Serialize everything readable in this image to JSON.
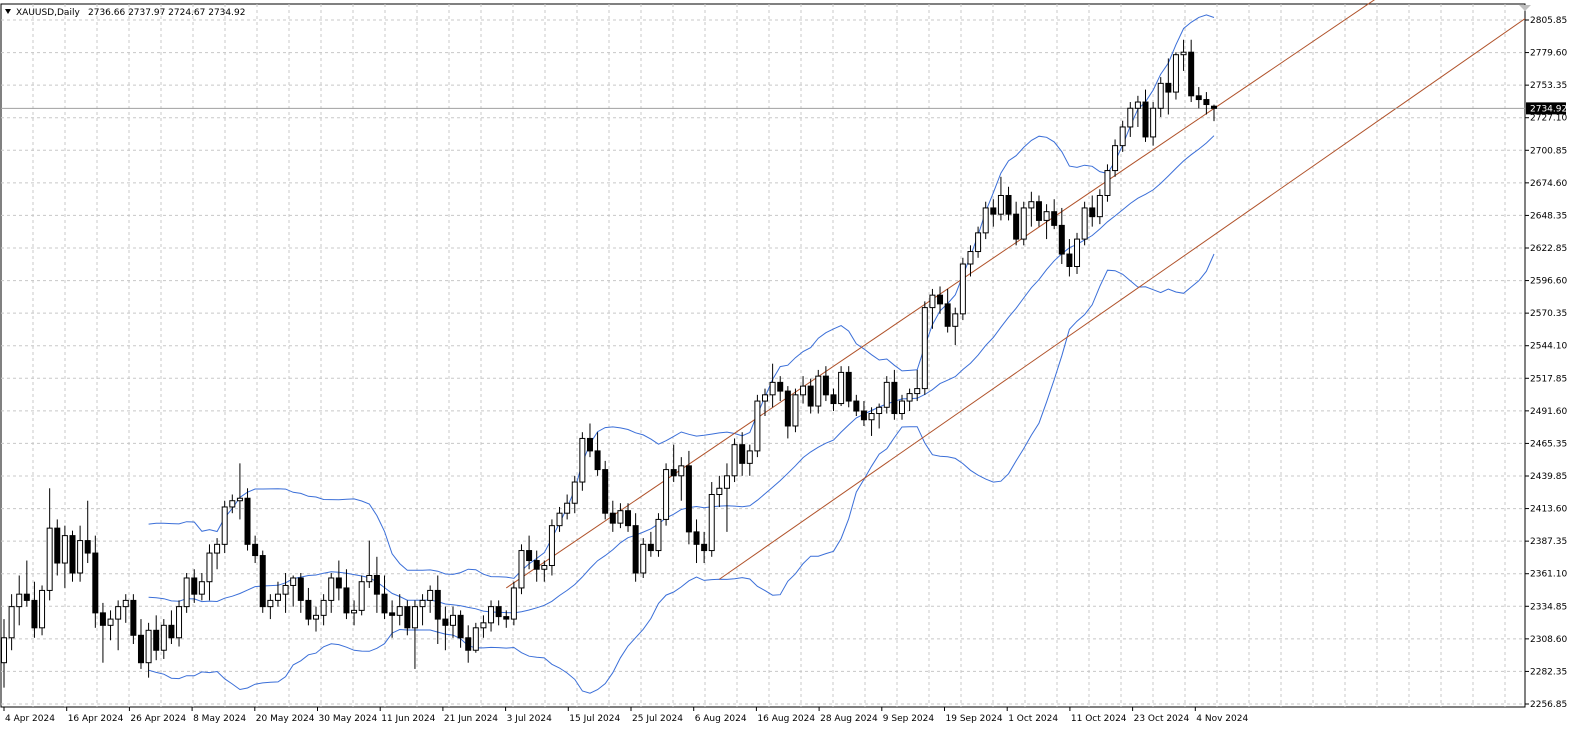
{
  "header": {
    "symbol": "XAUUSD,Daily",
    "ohlc": "2736.66 2737.97 2724.67 2734.92"
  },
  "price_scale": {
    "labels": [
      "2805.85",
      "2779.60",
      "2753.35",
      "2727.10",
      "2700.85",
      "2674.60",
      "2648.35",
      "2622.85",
      "2596.60",
      "2570.35",
      "2544.10",
      "2517.85",
      "2491.60",
      "2465.35",
      "2439.85",
      "2413.60",
      "2387.35",
      "2361.10",
      "2334.85",
      "2308.60",
      "2282.35",
      "2256.85"
    ],
    "current_price": "2734.92"
  },
  "time_scale": {
    "labels": [
      "4 Apr 2024",
      "16 Apr 2024",
      "26 Apr 2024",
      "8 May 2024",
      "20 May 2024",
      "30 May 2024",
      "11 Jun 2024",
      "21 Jun 2024",
      "3 Jul 2024",
      "15 Jul 2024",
      "25 Jul 2024",
      "6 Aug 2024",
      "16 Aug 2024",
      "28 Aug 2024",
      "9 Sep 2024",
      "19 Sep 2024",
      "1 Oct 2024",
      "11 Oct 2024",
      "23 Oct 2024",
      "4 Nov 2024"
    ]
  },
  "colors": {
    "background": "#ffffff",
    "grid": "#c8c8c8",
    "candle": "#000000",
    "bollinger": "#3b6fd8",
    "channel": "#b0522a",
    "price_line": "#a0a0a0"
  },
  "chart_data": {
    "type": "candlestick",
    "title": "XAUUSD,Daily",
    "overlays": [
      "Bollinger Bands",
      "Trend channel"
    ],
    "grid": true,
    "ylim": [
      2256.85,
      2805.85
    ],
    "last_price": 2734.92,
    "ohlc": [
      [
        2290,
        2325,
        2270,
        2310
      ],
      [
        2310,
        2345,
        2300,
        2335
      ],
      [
        2335,
        2360,
        2320,
        2345
      ],
      [
        2345,
        2372,
        2335,
        2340
      ],
      [
        2340,
        2355,
        2310,
        2318
      ],
      [
        2318,
        2352,
        2312,
        2348
      ],
      [
        2348,
        2430,
        2340,
        2398
      ],
      [
        2398,
        2405,
        2360,
        2370
      ],
      [
        2370,
        2400,
        2350,
        2392
      ],
      [
        2392,
        2396,
        2355,
        2362
      ],
      [
        2362,
        2400,
        2355,
        2388
      ],
      [
        2388,
        2420,
        2370,
        2378
      ],
      [
        2378,
        2392,
        2318,
        2330
      ],
      [
        2330,
        2338,
        2290,
        2320
      ],
      [
        2320,
        2332,
        2308,
        2325
      ],
      [
        2325,
        2340,
        2300,
        2335
      ],
      [
        2335,
        2345,
        2322,
        2340
      ],
      [
        2340,
        2345,
        2305,
        2312
      ],
      [
        2312,
        2325,
        2285,
        2290
      ],
      [
        2290,
        2322,
        2278,
        2316
      ],
      [
        2316,
        2328,
        2292,
        2300
      ],
      [
        2300,
        2325,
        2293,
        2320
      ],
      [
        2320,
        2332,
        2305,
        2310
      ],
      [
        2310,
        2340,
        2303,
        2335
      ],
      [
        2335,
        2362,
        2330,
        2358
      ],
      [
        2358,
        2365,
        2338,
        2345
      ],
      [
        2345,
        2362,
        2340,
        2355
      ],
      [
        2355,
        2385,
        2340,
        2378
      ],
      [
        2378,
        2390,
        2365,
        2385
      ],
      [
        2385,
        2420,
        2378,
        2415
      ],
      [
        2415,
        2425,
        2410,
        2420
      ],
      [
        2420,
        2450,
        2405,
        2422
      ],
      [
        2422,
        2430,
        2380,
        2385
      ],
      [
        2385,
        2392,
        2370,
        2376
      ],
      [
        2376,
        2380,
        2330,
        2335
      ],
      [
        2335,
        2345,
        2325,
        2340
      ],
      [
        2340,
        2355,
        2335,
        2345
      ],
      [
        2345,
        2362,
        2330,
        2352
      ],
      [
        2352,
        2360,
        2335,
        2358
      ],
      [
        2358,
        2362,
        2330,
        2340
      ],
      [
        2340,
        2350,
        2320,
        2325
      ],
      [
        2325,
        2335,
        2315,
        2328
      ],
      [
        2328,
        2345,
        2320,
        2340
      ],
      [
        2340,
        2362,
        2330,
        2358
      ],
      [
        2358,
        2372,
        2340,
        2350
      ],
      [
        2350,
        2365,
        2325,
        2330
      ],
      [
        2330,
        2340,
        2320,
        2332
      ],
      [
        2332,
        2360,
        2328,
        2355
      ],
      [
        2355,
        2388,
        2350,
        2360
      ],
      [
        2360,
        2375,
        2330,
        2345
      ],
      [
        2345,
        2360,
        2325,
        2330
      ],
      [
        2330,
        2340,
        2310,
        2328
      ],
      [
        2328,
        2345,
        2320,
        2335
      ],
      [
        2335,
        2340,
        2312,
        2318
      ],
      [
        2318,
        2340,
        2285,
        2335
      ],
      [
        2335,
        2345,
        2320,
        2340
      ],
      [
        2340,
        2352,
        2330,
        2348
      ],
      [
        2348,
        2360,
        2305,
        2325
      ],
      [
        2325,
        2335,
        2300,
        2320
      ],
      [
        2320,
        2335,
        2310,
        2328
      ],
      [
        2328,
        2332,
        2302,
        2310
      ],
      [
        2310,
        2320,
        2290,
        2300
      ],
      [
        2300,
        2322,
        2298,
        2318
      ],
      [
        2318,
        2328,
        2310,
        2322
      ],
      [
        2322,
        2340,
        2315,
        2335
      ],
      [
        2335,
        2340,
        2320,
        2327
      ],
      [
        2327,
        2332,
        2318,
        2325
      ],
      [
        2325,
        2355,
        2320,
        2350
      ],
      [
        2350,
        2385,
        2345,
        2380
      ],
      [
        2380,
        2392,
        2365,
        2372
      ],
      [
        2372,
        2380,
        2355,
        2365
      ],
      [
        2365,
        2372,
        2355,
        2368
      ],
      [
        2368,
        2405,
        2360,
        2400
      ],
      [
        2400,
        2415,
        2395,
        2410
      ],
      [
        2410,
        2425,
        2405,
        2418
      ],
      [
        2418,
        2440,
        2410,
        2435
      ],
      [
        2435,
        2475,
        2428,
        2470
      ],
      [
        2470,
        2482,
        2455,
        2460
      ],
      [
        2460,
        2475,
        2440,
        2445
      ],
      [
        2445,
        2452,
        2405,
        2410
      ],
      [
        2410,
        2420,
        2395,
        2402
      ],
      [
        2402,
        2418,
        2398,
        2412
      ],
      [
        2412,
        2418,
        2395,
        2400
      ],
      [
        2400,
        2410,
        2355,
        2362
      ],
      [
        2362,
        2390,
        2358,
        2385
      ],
      [
        2385,
        2395,
        2375,
        2380
      ],
      [
        2380,
        2410,
        2375,
        2405
      ],
      [
        2405,
        2450,
        2400,
        2445
      ],
      [
        2445,
        2465,
        2435,
        2440
      ],
      [
        2440,
        2455,
        2420,
        2448
      ],
      [
        2448,
        2460,
        2385,
        2395
      ],
      [
        2395,
        2405,
        2370,
        2385
      ],
      [
        2385,
        2395,
        2370,
        2380
      ],
      [
        2380,
        2435,
        2375,
        2425
      ],
      [
        2425,
        2440,
        2415,
        2430
      ],
      [
        2430,
        2450,
        2395,
        2440
      ],
      [
        2440,
        2470,
        2435,
        2465
      ],
      [
        2465,
        2475,
        2440,
        2450
      ],
      [
        2450,
        2465,
        2440,
        2460
      ],
      [
        2460,
        2505,
        2455,
        2500
      ],
      [
        2500,
        2510,
        2488,
        2505
      ],
      [
        2505,
        2530,
        2495,
        2515
      ],
      [
        2515,
        2520,
        2500,
        2508
      ],
      [
        2508,
        2512,
        2470,
        2480
      ],
      [
        2480,
        2510,
        2475,
        2505
      ],
      [
        2505,
        2520,
        2498,
        2512
      ],
      [
        2512,
        2518,
        2490,
        2496
      ],
      [
        2496,
        2525,
        2490,
        2520
      ],
      [
        2520,
        2528,
        2500,
        2505
      ],
      [
        2505,
        2510,
        2492,
        2498
      ],
      [
        2498,
        2528,
        2496,
        2523
      ],
      [
        2523,
        2528,
        2495,
        2500
      ],
      [
        2500,
        2505,
        2488,
        2492
      ],
      [
        2492,
        2500,
        2480,
        2485
      ],
      [
        2485,
        2495,
        2472,
        2490
      ],
      [
        2490,
        2498,
        2478,
        2495
      ],
      [
        2495,
        2520,
        2490,
        2515
      ],
      [
        2515,
        2525,
        2485,
        2490
      ],
      [
        2490,
        2505,
        2485,
        2500
      ],
      [
        2500,
        2510,
        2492,
        2506
      ],
      [
        2506,
        2525,
        2500,
        2510
      ],
      [
        2510,
        2580,
        2505,
        2575
      ],
      [
        2575,
        2590,
        2558,
        2585
      ],
      [
        2585,
        2592,
        2570,
        2578
      ],
      [
        2578,
        2590,
        2555,
        2560
      ],
      [
        2560,
        2575,
        2545,
        2570
      ],
      [
        2570,
        2615,
        2565,
        2610
      ],
      [
        2610,
        2625,
        2600,
        2620
      ],
      [
        2620,
        2640,
        2615,
        2635
      ],
      [
        2635,
        2660,
        2630,
        2655
      ],
      [
        2655,
        2662,
        2640,
        2650
      ],
      [
        2650,
        2680,
        2645,
        2665
      ],
      [
        2665,
        2672,
        2645,
        2650
      ],
      [
        2650,
        2660,
        2625,
        2630
      ],
      [
        2630,
        2660,
        2625,
        2655
      ],
      [
        2655,
        2668,
        2640,
        2660
      ],
      [
        2660,
        2665,
        2640,
        2645
      ],
      [
        2645,
        2658,
        2630,
        2652
      ],
      [
        2652,
        2662,
        2638,
        2641
      ],
      [
        2641,
        2655,
        2610,
        2618
      ],
      [
        2618,
        2630,
        2600,
        2608
      ],
      [
        2608,
        2635,
        2602,
        2630
      ],
      [
        2630,
        2660,
        2625,
        2655
      ],
      [
        2655,
        2665,
        2640,
        2648
      ],
      [
        2648,
        2670,
        2642,
        2665
      ],
      [
        2665,
        2690,
        2660,
        2685
      ],
      [
        2685,
        2710,
        2680,
        2705
      ],
      [
        2705,
        2725,
        2700,
        2720
      ],
      [
        2720,
        2740,
        2712,
        2735
      ],
      [
        2735,
        2745,
        2720,
        2740
      ],
      [
        2740,
        2750,
        2708,
        2712
      ],
      [
        2712,
        2740,
        2705,
        2735
      ],
      [
        2735,
        2760,
        2728,
        2755
      ],
      [
        2755,
        2775,
        2730,
        2748
      ],
      [
        2748,
        2780,
        2742,
        2778
      ],
      [
        2778,
        2790,
        2765,
        2780
      ],
      [
        2780,
        2790,
        2740,
        2745
      ],
      [
        2745,
        2752,
        2735,
        2742
      ],
      [
        2742,
        2748,
        2730,
        2738
      ],
      [
        2736.66,
        2737.97,
        2724.67,
        2734.92
      ]
    ]
  }
}
